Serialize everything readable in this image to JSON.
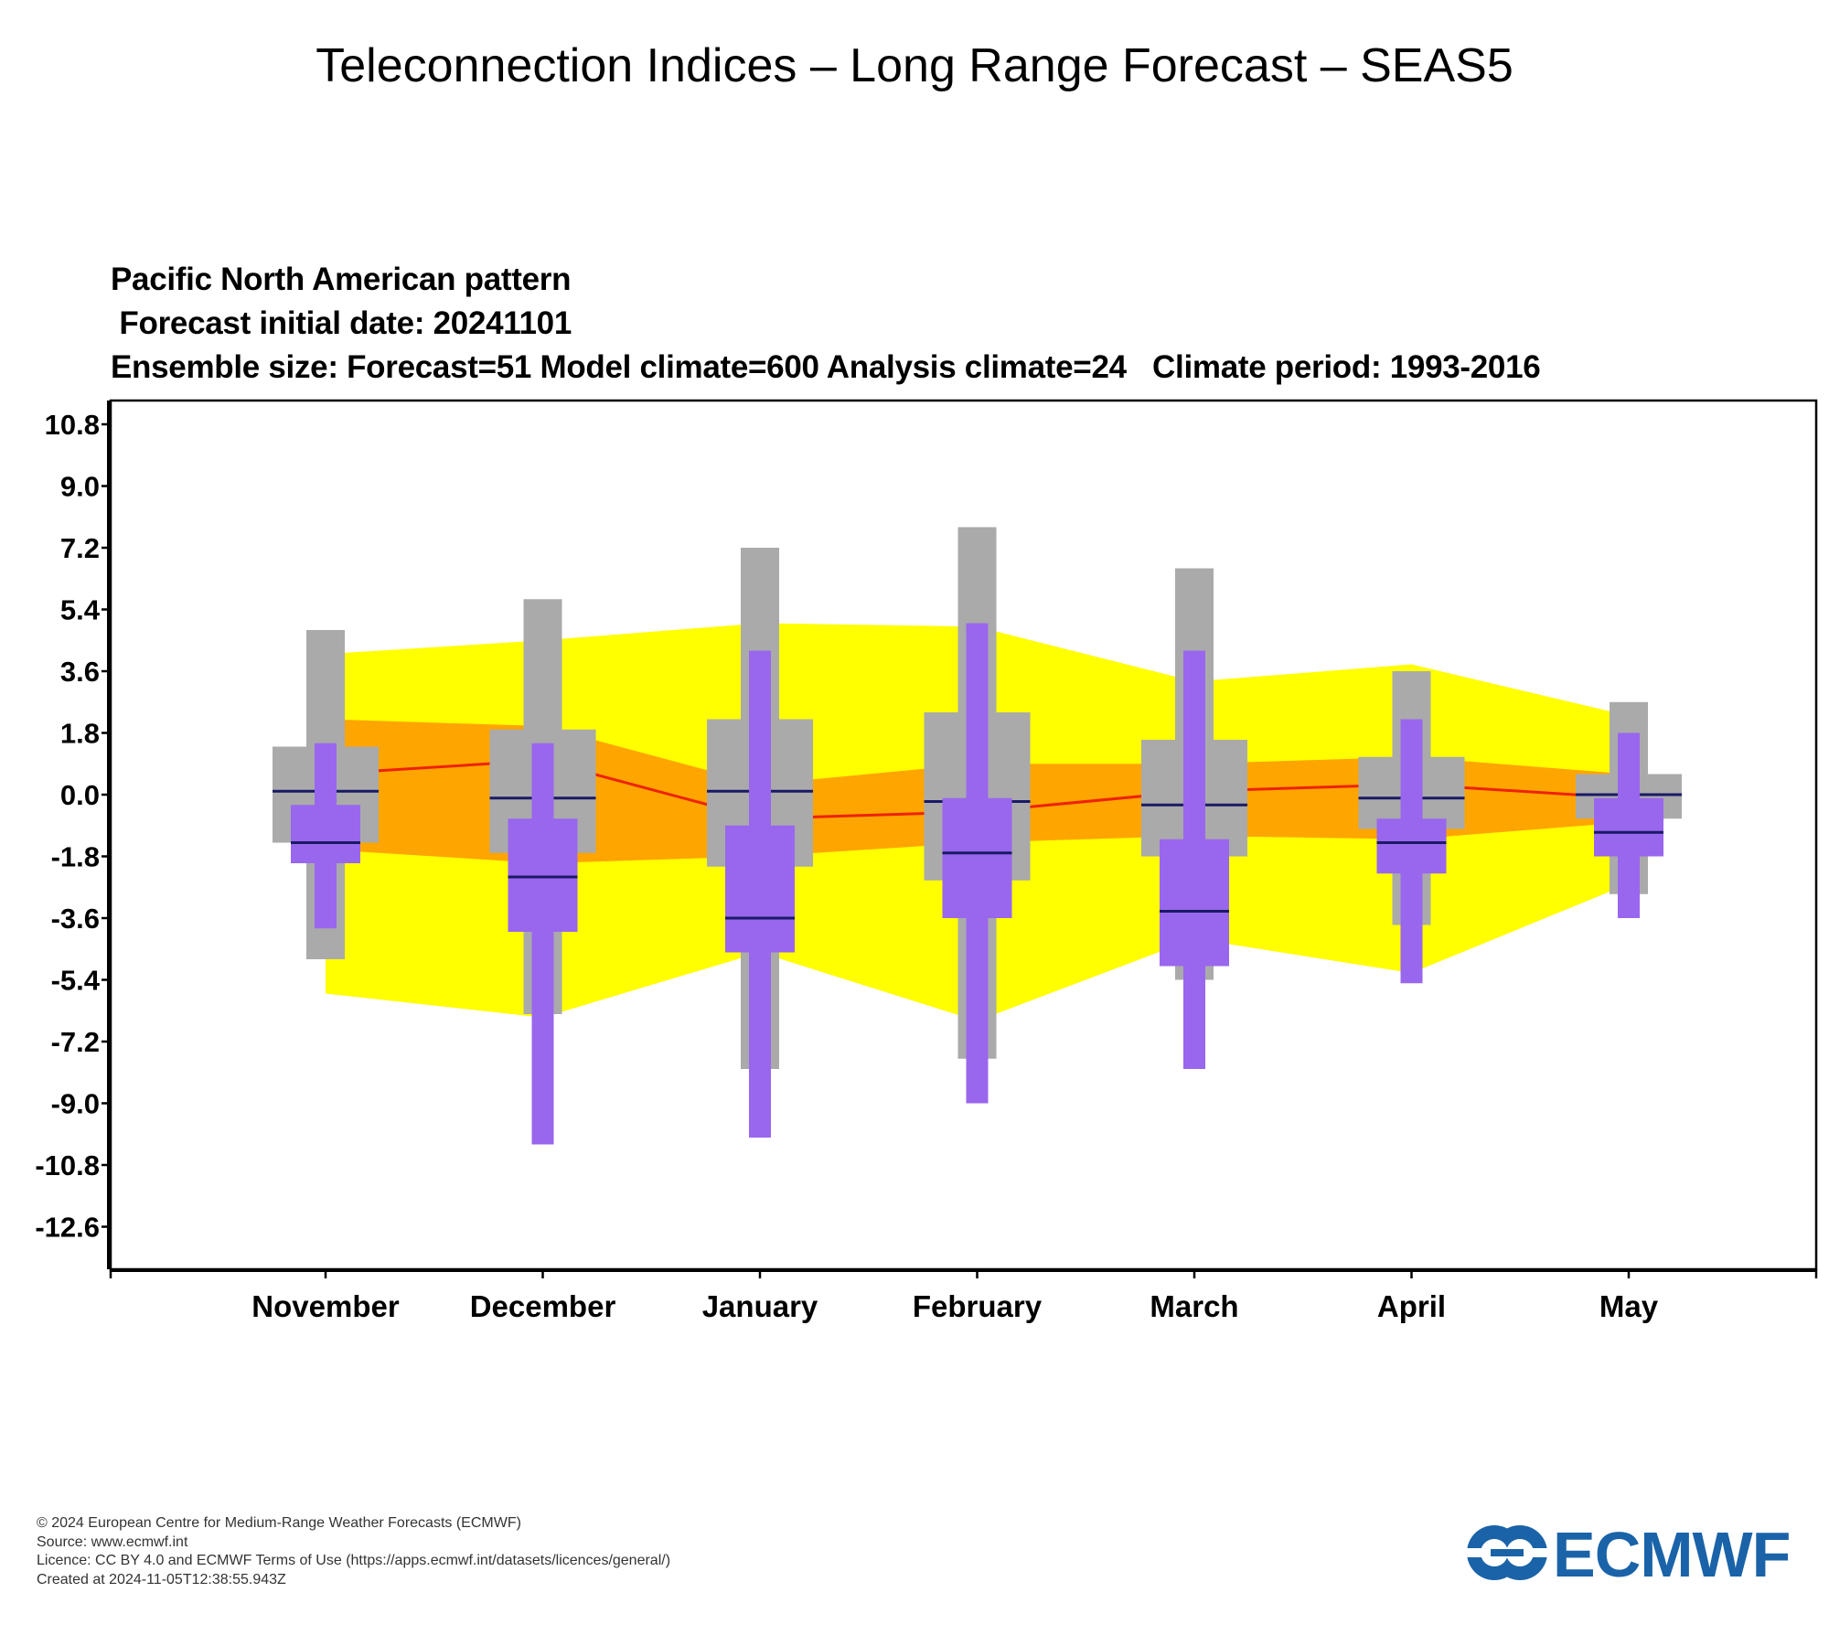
{
  "page": {
    "title": "Teleconnection Indices – Long Range Forecast – SEAS5"
  },
  "chart_head": {
    "line1": "Pacific North American pattern",
    "line2": " Forecast initial date: 20241101",
    "line3": "Ensemble size: Forecast=51 Model climate=600 Analysis climate=24   Climate period: 1993-2016"
  },
  "chart_data": {
    "type": "box",
    "title": "Pacific North American pattern",
    "categories": [
      "November",
      "December",
      "January",
      "February",
      "March",
      "April",
      "May"
    ],
    "y_ticks": [
      "10.8",
      "9.0",
      "7.2",
      "5.4",
      "3.6",
      "1.8",
      "0.0",
      "-1.8",
      "-3.6",
      "-5.4",
      "-7.2",
      "-9.0",
      "-10.8",
      "-12.6"
    ],
    "ylim": [
      -13.8,
      11.4
    ],
    "colors": {
      "climate_outer": "#ffff00",
      "climate_inner": "#ffa500",
      "model_climate": "#aaaaaa",
      "forecast": "#9966ee",
      "median": "#1a1a66",
      "analysis_line": "#ee2200"
    },
    "analysis_climate": {
      "outer_min": [
        -5.8,
        -6.5,
        -4.6,
        -6.6,
        -4.2,
        -5.2,
        -2.6
      ],
      "inner_low": [
        -1.6,
        -2.0,
        -1.8,
        -1.4,
        -1.2,
        -1.3,
        -0.8
      ],
      "median": [
        0.6,
        1.0,
        -0.7,
        -0.5,
        0.1,
        0.3,
        -0.1
      ],
      "inner_high": [
        2.2,
        2.0,
        0.3,
        0.9,
        0.9,
        1.1,
        0.6
      ],
      "outer_max": [
        4.1,
        4.5,
        5.0,
        4.9,
        3.3,
        3.8,
        2.3
      ]
    },
    "model_climate": {
      "min": [
        -4.8,
        -6.4,
        -8.0,
        -7.7,
        -5.4,
        -3.8,
        -2.9
      ],
      "p10": [
        -1.4,
        -1.7,
        -2.1,
        -2.5,
        -1.8,
        -1.0,
        -0.7
      ],
      "median": [
        0.1,
        -0.1,
        0.1,
        -0.2,
        -0.3,
        -0.1,
        0.0
      ],
      "p90": [
        1.4,
        1.9,
        2.2,
        2.4,
        1.6,
        1.1,
        0.6
      ],
      "max": [
        4.8,
        5.7,
        7.2,
        7.8,
        6.6,
        3.6,
        2.7
      ]
    },
    "forecast": {
      "min": [
        -3.9,
        -10.2,
        -10.0,
        -9.0,
        -8.0,
        -5.5,
        -3.6
      ],
      "p25": [
        -2.0,
        -4.0,
        -4.6,
        -3.6,
        -5.0,
        -2.3,
        -1.8
      ],
      "median": [
        -1.4,
        -2.4,
        -3.6,
        -1.7,
        -3.4,
        -1.4,
        -1.1
      ],
      "p75": [
        -0.3,
        -0.7,
        -0.9,
        -0.1,
        -1.3,
        -0.7,
        -0.1
      ],
      "max": [
        1.5,
        1.5,
        4.2,
        5.0,
        4.2,
        2.2,
        1.8
      ]
    }
  },
  "footer": {
    "copyright": "© 2024 European Centre for Medium-Range Weather Forecasts (ECMWF)",
    "source": "Source: www.ecmwf.int",
    "licence": "Licence: CC BY 4.0 and ECMWF Terms of Use (https://apps.ecmwf.int/datasets/licences/general/)",
    "created": "Created at 2024-11-05T12:38:55.943Z"
  },
  "logo": {
    "text": "ECMWF",
    "color": "#1a63a8"
  }
}
